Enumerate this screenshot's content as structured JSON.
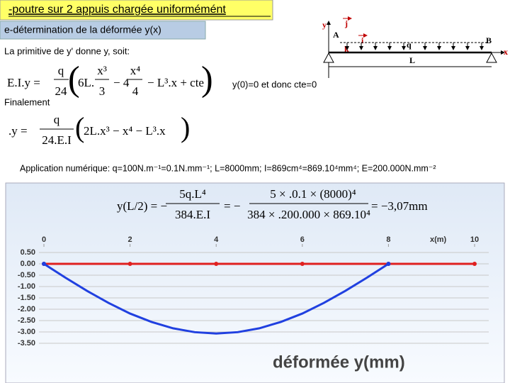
{
  "title": "-poutre sur 2 appuis chargée uniformémént",
  "subtitle": "e-détermination de la déformée y(x)",
  "diagram": {
    "y": "y",
    "j": "j",
    "A": "A",
    "i": "i",
    "k": "k",
    "q": "q",
    "B": "B",
    "x": "x",
    "L": "L"
  },
  "intro": "La primitive de y' donne y, soit:",
  "equation1": {
    "lhs": "E.I.y =",
    "num": "q",
    "den": "24",
    "open": "(",
    "t1": "6L.",
    "t1_num": "x³",
    "t1_den": "3",
    "t2": "− 4",
    "t2_num": "x⁴",
    "t2_den": "4",
    "t3": "− L³.x + cte",
    "close": ")"
  },
  "condition": "y(0)=0 et donc cte=0",
  "finally": "Finalement",
  "equation2": {
    "lhs": ".y =",
    "num": "q",
    "den": "24.E.I",
    "open": "(",
    "body": "2L.x³ − x⁴ − L³.x",
    "close": ")"
  },
  "application": "Application numérique: q=100N.m⁻¹=0.1N.mm⁻¹; L=8000mm; I=869cm⁴=869.10⁴mm⁴; E=200.000N.mm⁻²",
  "equation3": {
    "lhs": "y(L/2) = −",
    "num1": "5q.L⁴",
    "den1": "384.E.I",
    "mid": "= −",
    "num2": "5 × .0.1 × (8000)⁴",
    "den2": "384 × .200.000 × 869.10⁴",
    "result": "= −3,07mm"
  },
  "chart_data": {
    "type": "line",
    "title": "déformée y(mm)",
    "x_label": "x(m)",
    "xlim": [
      0,
      10
    ],
    "xticks": [
      0,
      2,
      4,
      6,
      8,
      10
    ],
    "ylim": [
      -3.5,
      0.5
    ],
    "yticks": [
      {
        "value": 0.5,
        "label": "0.50"
      },
      {
        "value": 0,
        "label": "0.00"
      },
      {
        "value": -0.5,
        "label": "-0.50"
      },
      {
        "value": -1,
        "label": "-1.00"
      },
      {
        "value": -1.5,
        "label": "-1.50"
      },
      {
        "value": -2,
        "label": "-2.00"
      },
      {
        "value": -2.5,
        "label": "-2.50"
      },
      {
        "value": -3,
        "label": "-3.00"
      },
      {
        "value": -3.5,
        "label": "-3.50"
      }
    ],
    "grid": true,
    "series": [
      {
        "color": "#e02020",
        "x": [
          0,
          2,
          4,
          6,
          8,
          10
        ],
        "values": [
          0,
          0,
          0,
          0,
          0,
          0
        ]
      },
      {
        "color": "#2040e0",
        "x": [
          0,
          0.5,
          1,
          1.5,
          2,
          2.5,
          3,
          3.5,
          4,
          4.5,
          5,
          5.5,
          6,
          6.5,
          7,
          7.5,
          8
        ],
        "values": [
          0,
          -0.61,
          -1.19,
          -1.72,
          -2.19,
          -2.56,
          -2.84,
          -3.01,
          -3.07,
          -3.01,
          -2.84,
          -2.56,
          -2.19,
          -1.72,
          -1.19,
          -0.61,
          0
        ]
      }
    ]
  }
}
